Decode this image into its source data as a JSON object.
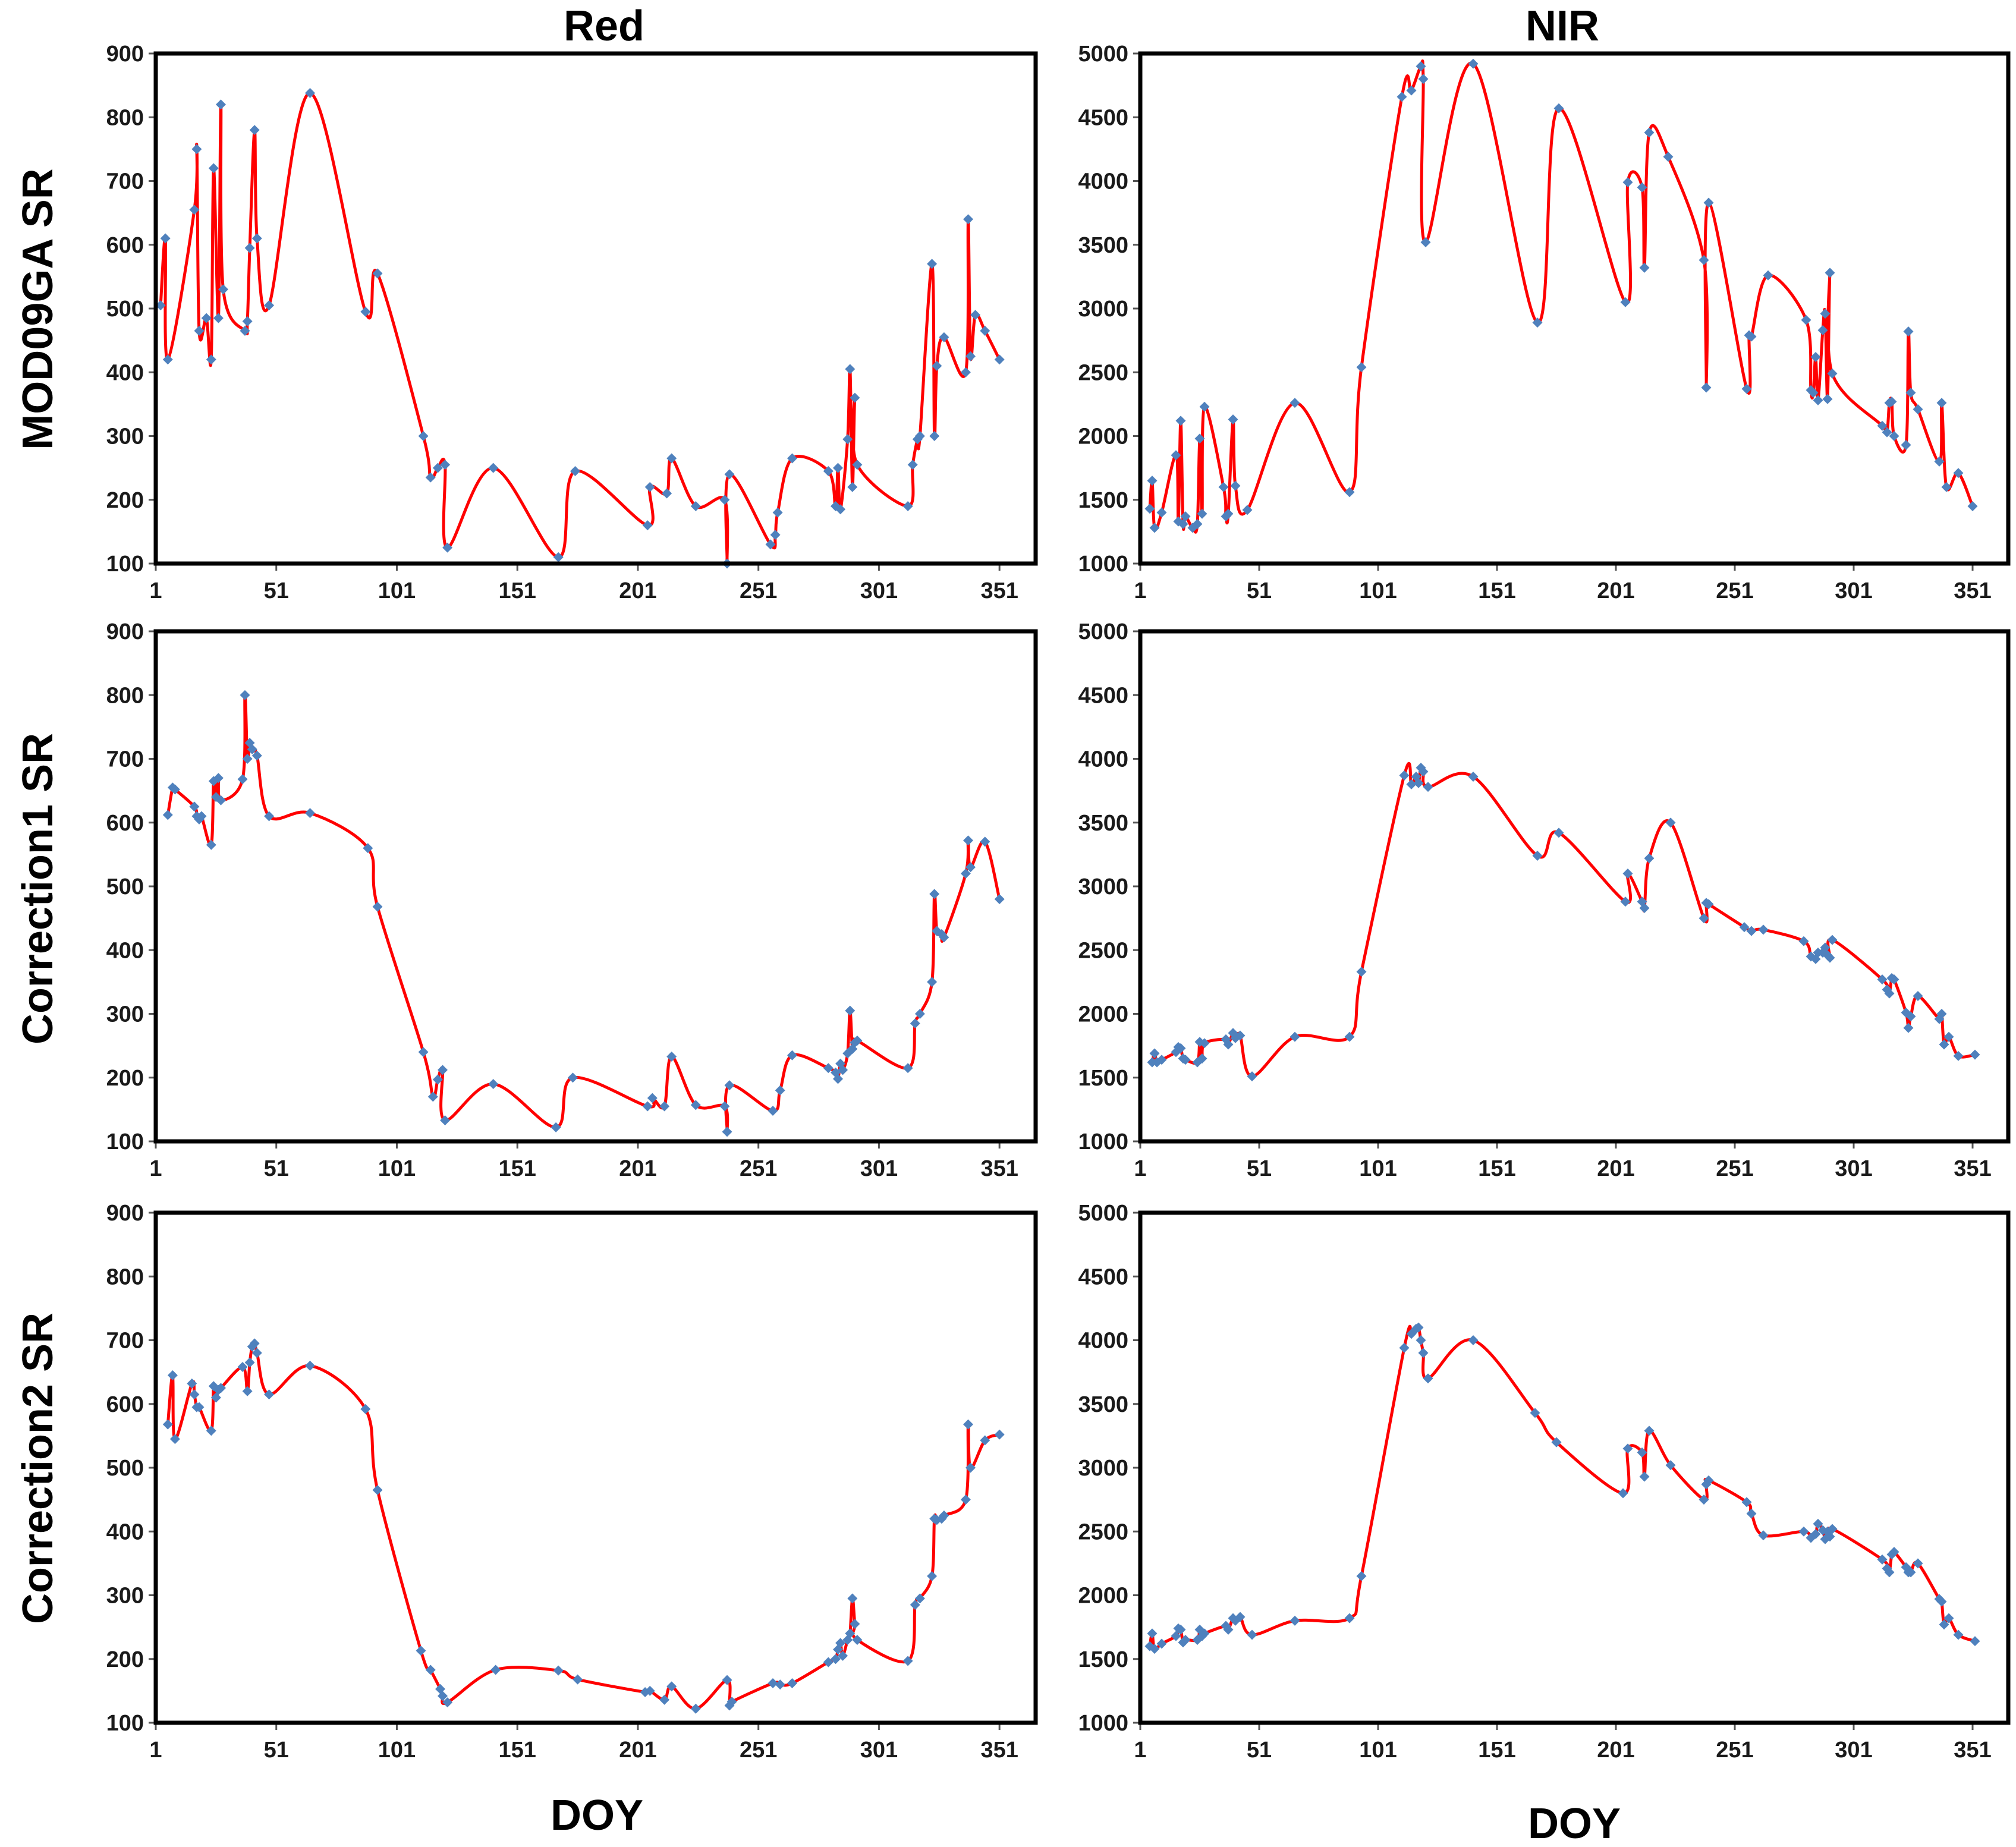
{
  "chart_data": [
    {
      "type": "line",
      "panel": "MOD09GA-Red",
      "title": "Red",
      "ylabel": "MOD09GA SR",
      "xlabel": "",
      "xlim": [
        1,
        366
      ],
      "ylim": [
        100,
        900
      ],
      "xticks": [
        "1",
        "51",
        "101",
        "151",
        "201",
        "251",
        "301",
        "351"
      ],
      "yticks": [
        "100",
        "200",
        "300",
        "400",
        "500",
        "600",
        "700",
        "800",
        "900"
      ],
      "series": [
        {
          "name": "MOD09GA SR Red",
          "x": [
            3,
            5,
            6,
            17,
            18,
            19,
            22,
            24,
            25,
            27,
            28,
            29,
            38,
            39,
            40,
            42,
            43,
            48,
            65,
            88,
            93,
            112,
            115,
            118,
            121,
            122,
            141,
            168,
            175,
            205,
            206,
            213,
            215,
            225,
            237,
            238,
            239,
            256,
            258,
            259,
            265,
            280,
            283,
            284,
            285,
            288,
            289,
            290,
            291,
            292,
            313,
            315,
            317,
            318,
            323,
            324,
            325,
            328,
            337,
            338,
            339,
            341,
            345,
            351
          ],
          "y": [
            505,
            610,
            420,
            655,
            750,
            465,
            485,
            420,
            720,
            485,
            820,
            530,
            465,
            480,
            595,
            780,
            610,
            505,
            838,
            495,
            555,
            300,
            235,
            250,
            255,
            125,
            250,
            110,
            245,
            160,
            220,
            210,
            265,
            190,
            200,
            100,
            240,
            130,
            145,
            180,
            265,
            245,
            190,
            250,
            185,
            295,
            405,
            220,
            360,
            255,
            190,
            255,
            295,
            300,
            570,
            300,
            410,
            455,
            400,
            640,
            425,
            490,
            465,
            420
          ]
        }
      ]
    },
    {
      "type": "line",
      "panel": "MOD09GA-NIR",
      "title": "NIR",
      "ylabel": "",
      "xlabel": "",
      "xlim": [
        1,
        366
      ],
      "ylim": [
        1000,
        5000
      ],
      "xticks": [
        "1",
        "51",
        "101",
        "151",
        "201",
        "251",
        "301",
        "351"
      ],
      "yticks": [
        "1000",
        "1500",
        "2000",
        "2500",
        "3000",
        "3500",
        "4000",
        "4500",
        "5000"
      ],
      "series": [
        {
          "name": "MOD09GA SR NIR",
          "x": [
            5,
            6,
            7,
            10,
            16,
            17,
            18,
            19,
            20,
            23,
            25,
            26,
            27,
            28,
            36,
            37,
            38,
            40,
            41,
            46,
            66,
            89,
            94,
            111,
            115,
            119,
            120,
            121,
            141,
            168,
            177,
            205,
            206,
            212,
            213,
            215,
            223,
            238,
            239,
            240,
            256,
            257,
            258,
            265,
            281,
            283,
            284,
            285,
            286,
            288,
            289,
            290,
            291,
            292,
            313,
            315,
            316,
            317,
            318,
            323,
            324,
            325,
            328,
            337,
            338,
            340,
            345,
            351
          ],
          "y": [
            1430,
            1650,
            1280,
            1400,
            1850,
            1330,
            2120,
            1310,
            1370,
            1280,
            1310,
            1980,
            1390,
            2230,
            1600,
            1370,
            1390,
            2130,
            1610,
            1420,
            2260,
            1560,
            2540,
            4660,
            4710,
            4900,
            4800,
            3520,
            4920,
            2890,
            4570,
            3050,
            3990,
            3950,
            3320,
            4380,
            4190,
            3380,
            2380,
            3830,
            2370,
            2790,
            2780,
            3260,
            2910,
            2360,
            2340,
            2620,
            2280,
            2830,
            2960,
            2290,
            3280,
            2490,
            2080,
            2030,
            2260,
            2270,
            2000,
            1930,
            2820,
            2340,
            2210,
            1800,
            2260,
            1600,
            1710,
            1450
          ]
        }
      ]
    },
    {
      "type": "line",
      "panel": "Correction1-Red",
      "title": "",
      "ylabel": "Correction1 SR",
      "xlabel": "",
      "xlim": [
        1,
        366
      ],
      "ylim": [
        100,
        900
      ],
      "xticks": [
        "1",
        "51",
        "101",
        "151",
        "201",
        "251",
        "301",
        "351"
      ],
      "yticks": [
        "100",
        "200",
        "300",
        "400",
        "500",
        "600",
        "700",
        "800",
        "900"
      ],
      "series": [
        {
          "name": "Correction1 SR Red",
          "x": [
            6,
            8,
            9,
            17,
            18,
            19,
            20,
            24,
            25,
            26,
            27,
            28,
            37,
            38,
            39,
            40,
            41,
            43,
            48,
            65,
            89,
            93,
            112,
            116,
            118,
            120,
            121,
            141,
            167,
            174,
            205,
            207,
            212,
            215,
            225,
            237,
            238,
            239,
            257,
            260,
            265,
            280,
            283,
            284,
            285,
            286,
            288,
            289,
            290,
            291,
            292,
            313,
            316,
            318,
            323,
            324,
            325,
            327,
            328,
            337,
            338,
            339,
            345,
            351
          ],
          "y": [
            612,
            655,
            652,
            625,
            610,
            605,
            610,
            565,
            665,
            640,
            670,
            635,
            668,
            800,
            700,
            725,
            715,
            705,
            610,
            615,
            560,
            468,
            240,
            170,
            197,
            212,
            133,
            190,
            122,
            200,
            155,
            168,
            155,
            233,
            157,
            155,
            115,
            188,
            148,
            180,
            235,
            215,
            208,
            198,
            222,
            212,
            238,
            305,
            245,
            255,
            258,
            215,
            285,
            300,
            350,
            488,
            430,
            425,
            420,
            520,
            572,
            530,
            570,
            480
          ]
        }
      ]
    },
    {
      "type": "line",
      "panel": "Correction1-NIR",
      "title": "",
      "ylabel": "",
      "xlabel": "",
      "xlim": [
        1,
        366
      ],
      "ylim": [
        1000,
        5000
      ],
      "xticks": [
        "1",
        "51",
        "101",
        "151",
        "201",
        "251",
        "301",
        "351"
      ],
      "yticks": [
        "1000",
        "1500",
        "2000",
        "2500",
        "3000",
        "3500",
        "4000",
        "4500",
        "5000"
      ],
      "series": [
        {
          "name": "Correction1 SR NIR",
          "x": [
            6,
            7,
            8,
            10,
            16,
            17,
            18,
            19,
            20,
            25,
            26,
            27,
            28,
            37,
            38,
            40,
            41,
            43,
            48,
            66,
            89,
            94,
            112,
            115,
            117,
            118,
            119,
            120,
            122,
            141,
            168,
            177,
            205,
            206,
            212,
            213,
            215,
            224,
            238,
            239,
            240,
            255,
            258,
            263,
            280,
            283,
            285,
            286,
            288,
            289,
            290,
            291,
            292,
            313,
            315,
            316,
            317,
            318,
            323,
            324,
            325,
            328,
            337,
            338,
            339,
            341,
            345,
            352
          ],
          "y": [
            1620,
            1690,
            1620,
            1640,
            1700,
            1740,
            1730,
            1650,
            1640,
            1620,
            1780,
            1650,
            1770,
            1800,
            1760,
            1850,
            1810,
            1830,
            1510,
            1820,
            1820,
            2330,
            3870,
            3800,
            3860,
            3810,
            3930,
            3900,
            3780,
            3860,
            3240,
            3420,
            2880,
            3100,
            2880,
            2830,
            3220,
            3500,
            2750,
            2870,
            2860,
            2680,
            2650,
            2660,
            2570,
            2450,
            2430,
            2480,
            2480,
            2520,
            2460,
            2440,
            2580,
            2270,
            2190,
            2160,
            2280,
            2270,
            2010,
            1890,
            1980,
            2140,
            1960,
            2000,
            1760,
            1820,
            1670,
            1680
          ]
        }
      ]
    },
    {
      "type": "line",
      "panel": "Correction2-Red",
      "title": "",
      "ylabel": "Correction2  SR",
      "xlabel": "DOY",
      "xlim": [
        1,
        366
      ],
      "ylim": [
        100,
        900
      ],
      "xticks": [
        "1",
        "51",
        "101",
        "151",
        "201",
        "251",
        "301",
        "351"
      ],
      "yticks": [
        "100",
        "200",
        "300",
        "400",
        "500",
        "600",
        "700",
        "800",
        "900"
      ],
      "series": [
        {
          "name": "Correction2 SR Red",
          "x": [
            6,
            8,
            9,
            16,
            17,
            18,
            19,
            24,
            25,
            26,
            27,
            28,
            37,
            39,
            40,
            41,
            42,
            43,
            48,
            65,
            88,
            93,
            111,
            115,
            119,
            120,
            122,
            142,
            168,
            176,
            204,
            206,
            212,
            215,
            225,
            238,
            239,
            240,
            257,
            260,
            265,
            280,
            283,
            284,
            285,
            286,
            288,
            289,
            290,
            291,
            292,
            313,
            316,
            318,
            323,
            324,
            325,
            327,
            328,
            337,
            338,
            339,
            345,
            351
          ],
          "y": [
            568,
            645,
            545,
            632,
            615,
            595,
            595,
            558,
            628,
            610,
            622,
            625,
            658,
            620,
            665,
            690,
            695,
            680,
            615,
            660,
            592,
            465,
            213,
            183,
            153,
            142,
            132,
            183,
            182,
            168,
            148,
            150,
            136,
            157,
            122,
            167,
            127,
            133,
            162,
            160,
            162,
            195,
            200,
            215,
            225,
            205,
            230,
            240,
            295,
            255,
            230,
            197,
            285,
            295,
            330,
            420,
            418,
            420,
            425,
            450,
            568,
            500,
            543,
            552
          ]
        }
      ]
    },
    {
      "type": "line",
      "panel": "Correction2-NIR",
      "title": "",
      "ylabel": "",
      "xlabel": "DOY",
      "xlim": [
        1,
        366
      ],
      "ylim": [
        1000,
        5000
      ],
      "xticks": [
        "1",
        "51",
        "101",
        "151",
        "201",
        "251",
        "301",
        "351"
      ],
      "yticks": [
        "1000",
        "1500",
        "2000",
        "2500",
        "3000",
        "3500",
        "4000",
        "4500",
        "5000"
      ],
      "series": [
        {
          "name": "Correction2 SR NIR",
          "x": [
            5,
            6,
            7,
            10,
            16,
            17,
            18,
            19,
            20,
            25,
            26,
            27,
            28,
            37,
            38,
            40,
            41,
            43,
            48,
            66,
            89,
            94,
            112,
            115,
            117,
            118,
            119,
            120,
            122,
            141,
            167,
            176,
            204,
            206,
            212,
            213,
            215,
            224,
            238,
            239,
            240,
            256,
            258,
            263,
            280,
            283,
            285,
            286,
            288,
            289,
            290,
            291,
            292,
            313,
            315,
            316,
            317,
            318,
            323,
            324,
            325,
            328,
            337,
            338,
            339,
            341,
            345,
            352
          ],
          "y": [
            1600,
            1700,
            1580,
            1620,
            1680,
            1740,
            1730,
            1630,
            1650,
            1650,
            1730,
            1680,
            1700,
            1760,
            1730,
            1820,
            1800,
            1830,
            1690,
            1800,
            1820,
            2150,
            3940,
            4050,
            4090,
            4100,
            4000,
            3900,
            3700,
            4000,
            3430,
            3200,
            2800,
            3150,
            3120,
            2930,
            3290,
            3020,
            2750,
            2870,
            2900,
            2730,
            2640,
            2470,
            2500,
            2450,
            2480,
            2560,
            2510,
            2440,
            2500,
            2460,
            2520,
            2280,
            2210,
            2180,
            2320,
            2340,
            2220,
            2180,
            2180,
            2250,
            1970,
            1950,
            1770,
            1820,
            1690,
            1640
          ]
        }
      ]
    }
  ]
}
